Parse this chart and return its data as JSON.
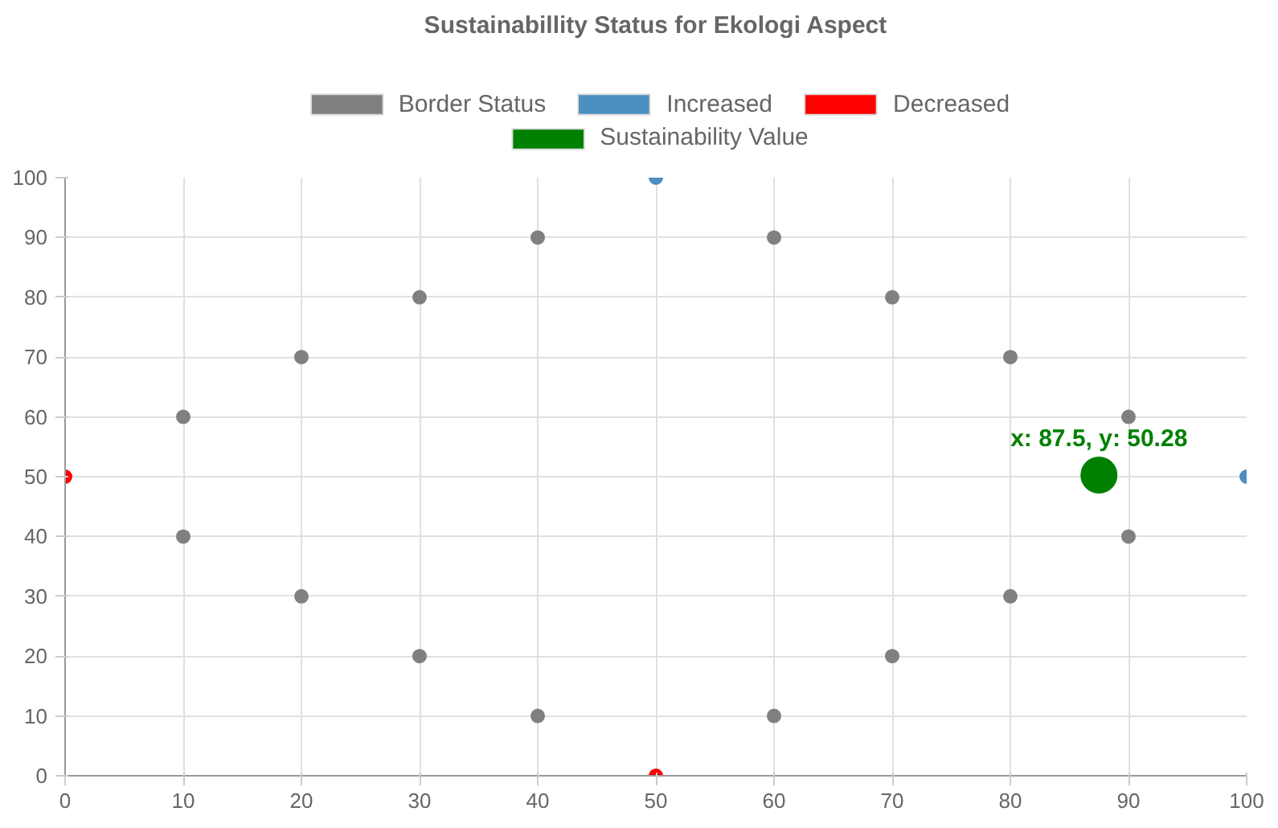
{
  "chart_data": {
    "type": "scatter",
    "title": "Sustainabillity Status for Ekologi Aspect",
    "series": [
      {
        "name": "Border Status",
        "color": "#808080",
        "x": [
          10,
          10,
          20,
          20,
          30,
          30,
          40,
          40,
          60,
          60,
          70,
          70,
          80,
          80,
          90,
          90
        ],
        "values": [
          60,
          40,
          70,
          30,
          80,
          20,
          90,
          10,
          90,
          10,
          80,
          20,
          70,
          30,
          60,
          40
        ]
      },
      {
        "name": "Increased",
        "color": "#4a90c0",
        "x": [
          50,
          100
        ],
        "values": [
          100,
          50
        ]
      },
      {
        "name": "Decreased",
        "color": "#ff0000",
        "x": [
          0,
          50
        ],
        "values": [
          50,
          0
        ]
      },
      {
        "name": "Sustainability Value",
        "color": "#008000",
        "x": [
          87.5
        ],
        "values": [
          50.28
        ]
      }
    ],
    "annotations": [
      {
        "text": "x: 87.5, y: 50.28",
        "x": 87.5,
        "y": 50.28
      }
    ],
    "xlim": [
      0,
      100
    ],
    "ylim": [
      0,
      100
    ],
    "xticks": [
      0,
      10,
      20,
      30,
      40,
      50,
      60,
      70,
      80,
      90,
      100
    ],
    "yticks": [
      0,
      10,
      20,
      30,
      40,
      50,
      60,
      70,
      80,
      90,
      100
    ],
    "grid": true,
    "legend": "top",
    "marker": "circle"
  }
}
